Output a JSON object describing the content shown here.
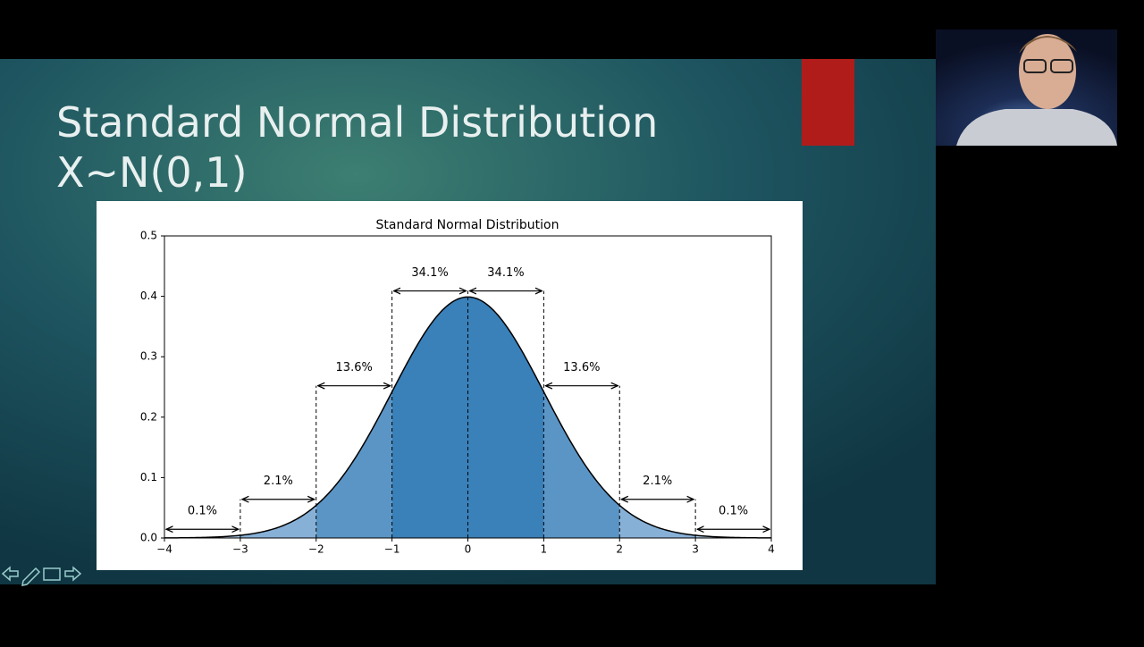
{
  "slide": {
    "title_lines": [
      "Standard Normal Distribution",
      "X~N(0,1)"
    ]
  },
  "chart_data": {
    "type": "normal-regions",
    "title": "Standard Normal Distribution",
    "curve": {
      "mean": 0,
      "sd": 1
    },
    "regions": {
      "bins": [
        -4,
        -3,
        -2,
        -1,
        0,
        1,
        2,
        3,
        4
      ],
      "values": [
        0.1,
        2.1,
        13.6,
        34.1,
        34.1,
        13.6,
        2.1,
        0.1
      ],
      "value_labels": [
        "0.1%",
        "2.1%",
        "13.6%",
        "34.1%",
        "34.1%",
        "13.6%",
        "2.1%",
        "0.1%"
      ],
      "colors": [
        "#aecbe6",
        "#87b0d7",
        "#5b95c6",
        "#3a80b9",
        "#3a80b9",
        "#5b95c6",
        "#87b0d7",
        "#aecbe6"
      ]
    },
    "xlim": [
      -4,
      4
    ],
    "xticks": [
      {
        "value": -4,
        "label": "−4"
      },
      {
        "value": -3,
        "label": "−3"
      },
      {
        "value": -2,
        "label": "−2"
      },
      {
        "value": -1,
        "label": "−1"
      },
      0,
      1,
      2,
      3,
      4
    ],
    "ylim": [
      0,
      0.5
    ],
    "yticks": [
      {
        "value": 0,
        "label": "0.0"
      },
      0.1,
      0.2,
      0.3,
      0.4,
      0.5
    ]
  }
}
